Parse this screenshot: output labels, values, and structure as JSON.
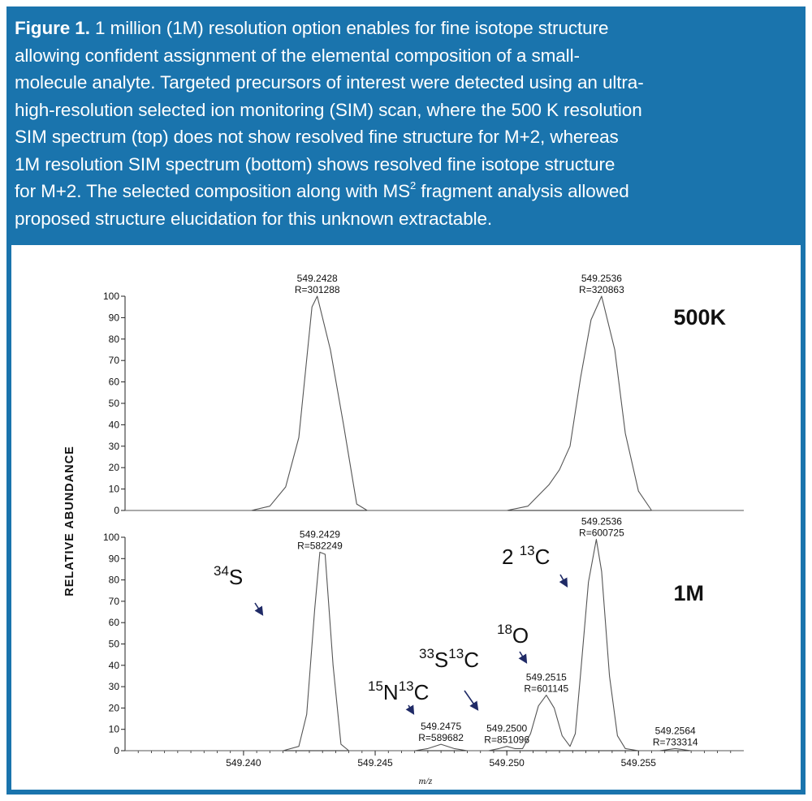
{
  "caption": {
    "label": "Figure 1.",
    "lines": [
      " 1 million (1M) resolution option enables for fine isotope structure",
      "allowing confident assignment of the elemental composition of a small-",
      "molecule analyte. Targeted precursors of interest were detected using an ultra-",
      "high-resolution selected ion monitoring (SIM) scan, where the 500 K resolution",
      "SIM spectrum (top) does not show resolved fine structure for M+2, whereas",
      "1M resolution SIM spectrum (bottom) shows resolved fine isotope structure",
      "for M+2. The selected composition along with MS",
      "proposed structure elucidation for this unknown extractable."
    ],
    "line7_sup": "2",
    "line7_tail": " fragment analysis allowed"
  },
  "colors": {
    "frame": "#1a74ad",
    "trace": "#555555",
    "arrow": "#1f2a66",
    "tag_gray": "#4d4d4d"
  },
  "chart_data": [
    {
      "type": "line",
      "title": "500K",
      "ylabel": "RELATIVE ABUNDANCE",
      "xlabel": "m/z",
      "xlim": [
        549.2355,
        549.259
      ],
      "ylim": [
        0,
        100
      ],
      "yticks": [
        "0",
        "10",
        "20",
        "30",
        "40",
        "50",
        "60",
        "70",
        "80",
        "90",
        "100"
      ],
      "x": [
        549.2355,
        549.238,
        549.2403,
        549.241,
        549.2416,
        549.2421,
        549.2426,
        549.2428,
        549.2433,
        549.2438,
        549.2443,
        549.2447,
        549.2452,
        549.25,
        549.2508,
        549.2512,
        549.2516,
        549.252,
        549.2524,
        549.2528,
        549.2532,
        549.2536,
        549.2541,
        549.2545,
        549.255,
        549.2555,
        549.259
      ],
      "values": [
        0,
        0,
        0,
        2,
        11,
        34,
        95,
        100,
        75,
        40,
        3,
        0,
        0,
        0,
        2,
        7,
        12,
        19,
        30,
        62,
        89,
        100,
        75,
        36,
        9,
        0,
        0
      ],
      "peak_labels": [
        {
          "mz": "549.2428",
          "r": "R=301288",
          "x": 549.2428,
          "y": 100
        },
        {
          "mz": "549.2536",
          "r": "R=320863",
          "x": 549.2536,
          "y": 100
        }
      ]
    },
    {
      "type": "line",
      "title": "1M",
      "xlabel": "m/z",
      "xlim": [
        549.2355,
        549.259
      ],
      "ylim": [
        0,
        100
      ],
      "yticks": [
        "0",
        "10",
        "20",
        "30",
        "40",
        "50",
        "60",
        "70",
        "80",
        "90",
        "100"
      ],
      "xticks": [
        "549.240",
        "549.245",
        "549.250",
        "549.255"
      ],
      "xtick_values": [
        549.24,
        549.245,
        549.25,
        549.255
      ],
      "x": [
        549.2355,
        549.24,
        549.2415,
        549.2421,
        549.2424,
        549.2427,
        549.2429,
        549.2431,
        549.2434,
        549.2437,
        549.244,
        549.2445,
        549.2465,
        549.247,
        549.2475,
        549.248,
        549.2485,
        549.2493,
        549.2497,
        549.25,
        549.2503,
        549.2506,
        549.2509,
        549.2512,
        549.2515,
        549.2518,
        549.2521,
        549.2524,
        549.2526,
        549.2528,
        549.2531,
        549.2534,
        549.2536,
        549.2539,
        549.2542,
        549.2545,
        549.255,
        549.2558,
        549.2564,
        549.257,
        549.259
      ],
      "values": [
        0,
        0,
        0,
        2,
        17,
        66,
        93,
        92,
        40,
        3,
        0,
        0,
        0,
        1,
        3,
        1,
        0,
        0,
        1,
        2,
        1,
        1,
        8,
        21,
        26,
        20,
        7,
        2,
        8,
        36,
        79,
        99,
        84,
        35,
        7,
        1,
        0,
        0,
        1,
        0,
        0
      ],
      "peak_labels": [
        {
          "mz": "549.2429",
          "r": "R=582249",
          "x": 549.2429,
          "y": 93
        },
        {
          "mz": "549.2475",
          "r": "R=589682",
          "x": 549.2475,
          "y": 3
        },
        {
          "mz": "549.2500",
          "r": "R=851096",
          "x": 549.25,
          "y": 2
        },
        {
          "mz": "549.2515",
          "r": "R=601145",
          "x": 549.2515,
          "y": 26
        },
        {
          "mz": "549.2536",
          "r": "R=600725",
          "x": 549.2536,
          "y": 99
        },
        {
          "mz": "549.2564",
          "r": "R=733314",
          "x": 549.2564,
          "y": 1
        }
      ],
      "isotope_annotations": [
        {
          "text": "34S",
          "sup": "34",
          "base": "S"
        },
        {
          "text": "15N13C",
          "sup1": "15",
          "b1": "N",
          "sup2": "13",
          "b2": "C"
        },
        {
          "text": "33S13C",
          "sup1": "33",
          "b1": "S",
          "sup2": "13",
          "b2": "C"
        },
        {
          "text": "18O",
          "sup": "18",
          "base": "O"
        },
        {
          "text": "2 13C",
          "pre": "2 ",
          "sup": "13",
          "base": "C"
        }
      ]
    }
  ]
}
